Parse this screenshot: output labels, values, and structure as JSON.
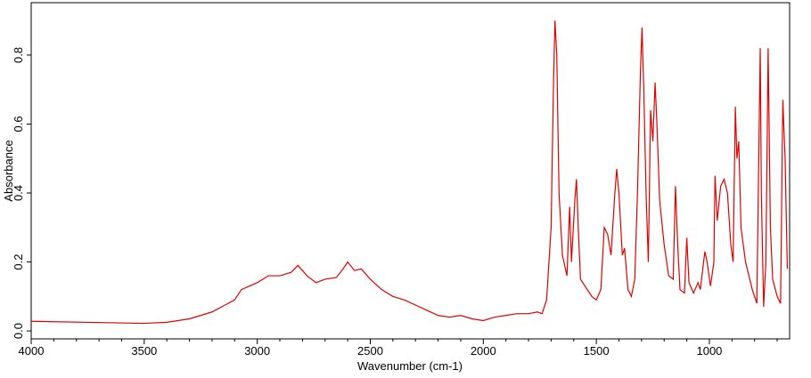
{
  "chart_data": {
    "type": "line",
    "x_label": "Wavenumber (cm-1)",
    "y_label": "Absorbance",
    "xlim": [
      4000,
      645
    ],
    "ylim": [
      -0.023,
      0.952
    ],
    "xticks": [
      4000,
      3500,
      3000,
      2500,
      2000,
      1500,
      1000
    ],
    "xminorticks": [
      3900,
      3800,
      3700,
      3600,
      3400,
      3300,
      3200,
      3100,
      2900,
      2800,
      2700,
      2600,
      2400,
      2300,
      2200,
      2100,
      1900,
      1800,
      1700,
      1600,
      1400,
      1300,
      1200,
      1100,
      900,
      800,
      700
    ],
    "yticks": [
      {
        "value": 0,
        "label": "0.0"
      },
      0.2,
      0.4,
      0.6,
      0.8
    ],
    "x": [
      4000,
      3500,
      3400,
      3300,
      3200,
      3100,
      3070,
      3000,
      2950,
      2900,
      2850,
      2820,
      2780,
      2740,
      2700,
      2650,
      2620,
      2600,
      2570,
      2540,
      2500,
      2450,
      2400,
      2350,
      2300,
      2250,
      2200,
      2150,
      2100,
      2050,
      2000,
      1950,
      1900,
      1850,
      1800,
      1760,
      1740,
      1720,
      1700,
      1690,
      1683,
      1675,
      1665,
      1650,
      1630,
      1618,
      1610,
      1595,
      1588,
      1580,
      1570,
      1550,
      1520,
      1500,
      1480,
      1465,
      1450,
      1435,
      1420,
      1410,
      1400,
      1385,
      1375,
      1360,
      1345,
      1330,
      1318,
      1305,
      1298,
      1290,
      1280,
      1270,
      1260,
      1250,
      1240,
      1232,
      1220,
      1200,
      1180,
      1160,
      1150,
      1140,
      1130,
      1110,
      1100,
      1090,
      1070,
      1050,
      1040,
      1020,
      1010,
      995,
      980,
      975,
      965,
      950,
      935,
      920,
      905,
      895,
      885,
      878,
      870,
      860,
      840,
      810,
      790,
      775,
      770,
      760,
      750,
      740,
      730,
      720,
      700,
      685,
      675,
      665,
      655
    ],
    "series": [
      {
        "color": "#e00000",
        "values": [
          0.028,
          0.022,
          0.025,
          0.035,
          0.055,
          0.09,
          0.12,
          0.14,
          0.16,
          0.16,
          0.17,
          0.19,
          0.16,
          0.14,
          0.15,
          0.155,
          0.18,
          0.2,
          0.175,
          0.18,
          0.15,
          0.12,
          0.1,
          0.09,
          0.075,
          0.06,
          0.045,
          0.04,
          0.045,
          0.035,
          0.03,
          0.04,
          0.045,
          0.05,
          0.05,
          0.055,
          0.05,
          0.09,
          0.3,
          0.7,
          0.9,
          0.8,
          0.4,
          0.22,
          0.16,
          0.36,
          0.2,
          0.38,
          0.44,
          0.3,
          0.15,
          0.13,
          0.1,
          0.09,
          0.12,
          0.3,
          0.28,
          0.22,
          0.38,
          0.47,
          0.4,
          0.22,
          0.24,
          0.12,
          0.1,
          0.15,
          0.4,
          0.75,
          0.88,
          0.7,
          0.4,
          0.2,
          0.64,
          0.55,
          0.72,
          0.6,
          0.38,
          0.25,
          0.16,
          0.15,
          0.42,
          0.25,
          0.12,
          0.11,
          0.27,
          0.14,
          0.11,
          0.14,
          0.12,
          0.23,
          0.2,
          0.13,
          0.2,
          0.45,
          0.32,
          0.42,
          0.44,
          0.4,
          0.25,
          0.2,
          0.65,
          0.5,
          0.55,
          0.3,
          0.2,
          0.12,
          0.08,
          0.82,
          0.4,
          0.07,
          0.2,
          0.82,
          0.3,
          0.15,
          0.1,
          0.08,
          0.67,
          0.5,
          0.18
        ]
      }
    ]
  }
}
